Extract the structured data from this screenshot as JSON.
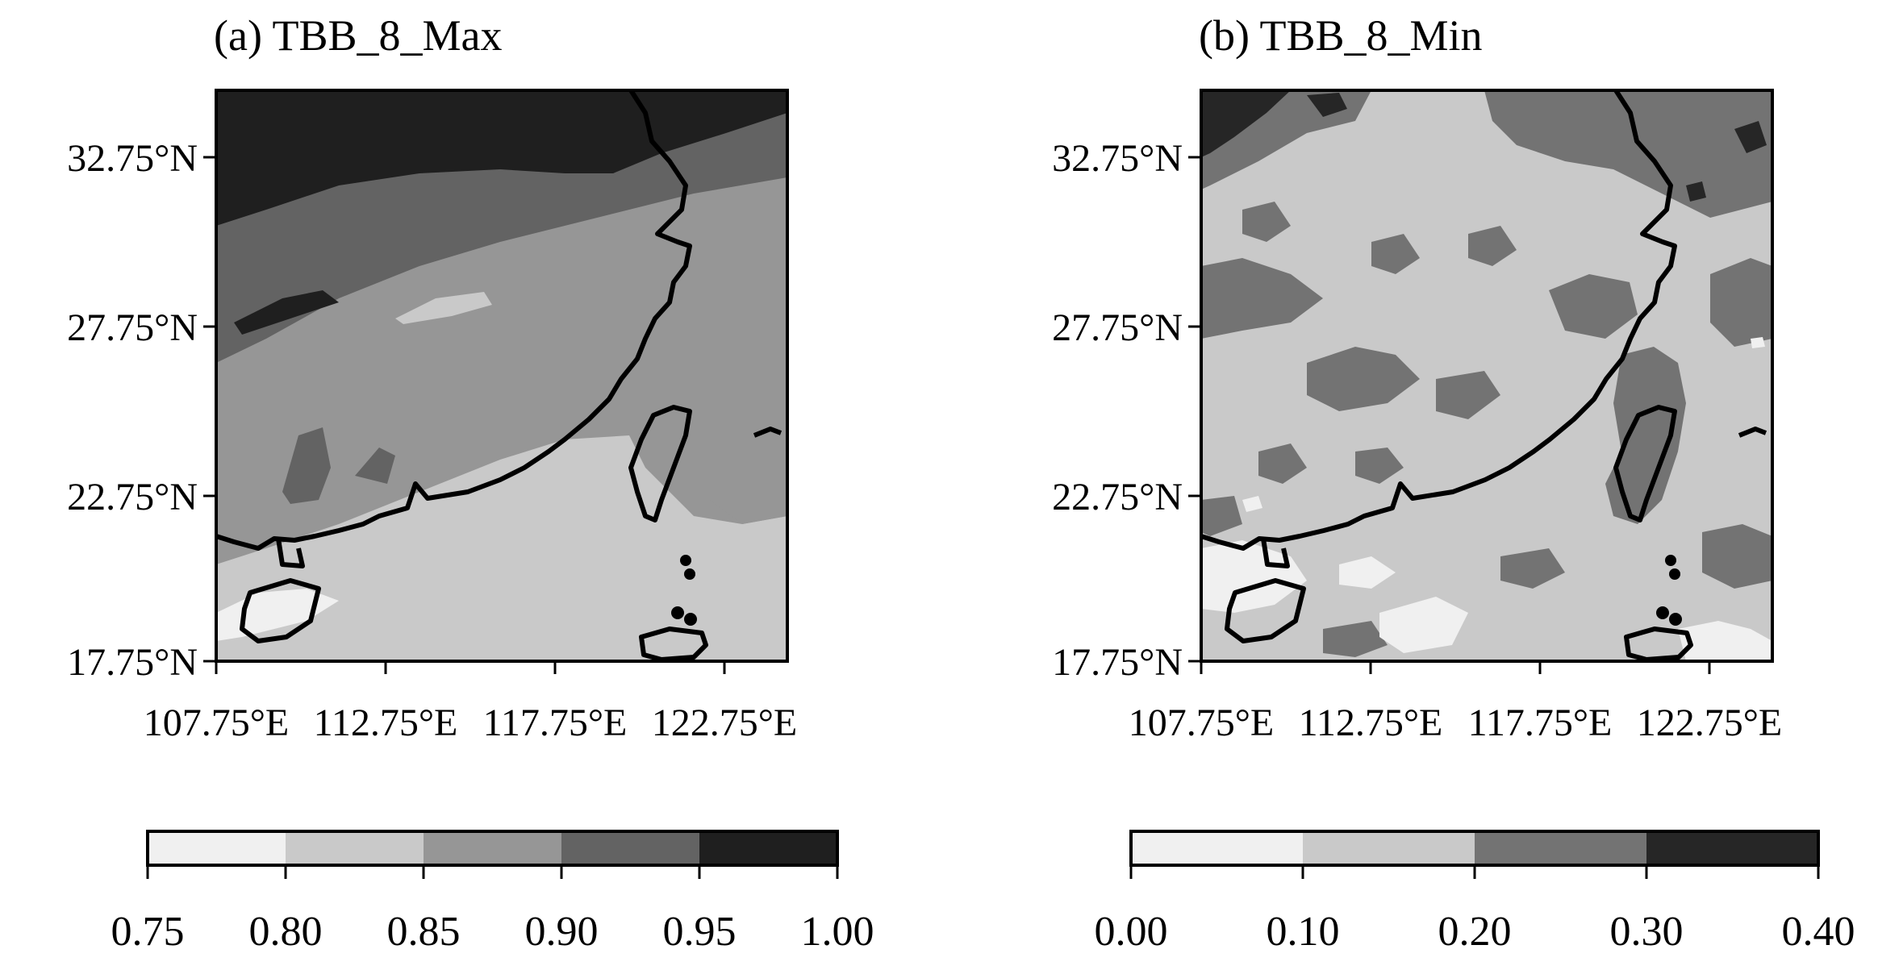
{
  "panels": [
    {
      "title": "(a) TBB_8_Max",
      "lat_ticks": [
        "32.75°N",
        "27.75°N",
        "22.75°N",
        "17.75°N"
      ],
      "lon_ticks": [
        "107.75°E",
        "112.75°E",
        "117.75°E",
        "122.75°E"
      ],
      "colorbar": {
        "ticks": [
          "0.75",
          "0.80",
          "0.85",
          "0.90",
          "0.95",
          "1.00"
        ],
        "colors": [
          "#f0f0f0",
          "#c9c9c9",
          "#969696",
          "#636363",
          "#1f1f1f"
        ]
      }
    },
    {
      "title": "(b) TBB_8_Min",
      "lat_ticks": [
        "32.75°N",
        "27.75°N",
        "22.75°N",
        "17.75°N"
      ],
      "lon_ticks": [
        "107.75°E",
        "112.75°E",
        "117.75°E",
        "122.75°E"
      ],
      "colorbar": {
        "ticks": [
          "0.00",
          "0.10",
          "0.20",
          "0.30",
          "0.40"
        ],
        "colors": [
          "#f0f0f0",
          "#c9c9c9",
          "#737373",
          "#262626"
        ]
      }
    }
  ]
}
